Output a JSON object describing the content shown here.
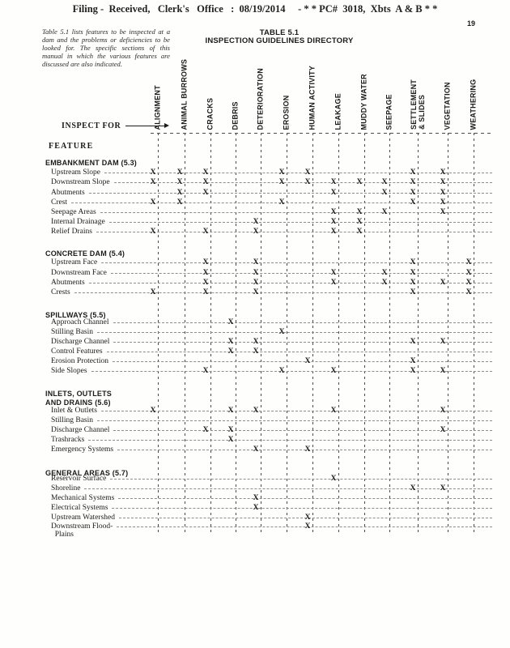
{
  "filing_header": {
    "text": "Filing -  Received,   Clerk's   Office   :  08/19/2014     - * * PC#  3018,  Xbts  A & B * *"
  },
  "page_number": "19",
  "intro_note": "Table 5.1 lists features to be inspected at a dam and the problems or deficiencies to be looked for. The specific sections of this manual in which the various features are discussed are also indicated.",
  "title": {
    "line1": "TABLE 5.1",
    "line2": "INSPECTION GUIDELINES DIRECTORY"
  },
  "labels": {
    "inspect_for": "INSPECT FOR",
    "feature": "FEATURE",
    "mark": "X"
  },
  "table": {
    "columns": [
      "ALIGNMENT",
      "ANIMAL BURROWS",
      "CRACKS",
      "DEBRIS",
      "DETERIORATION",
      "EROSION",
      "HUMAN ACTIVITY",
      "LEAKAGE",
      "MUDDY WATER",
      "SEEPAGE",
      "SETTLEMENT\n& SLIDES",
      "VEGETATION",
      "WEATHERING"
    ],
    "sections": [
      {
        "title": "EMBANKMENT DAM (5.3)",
        "rows": [
          {
            "label": "Upstream Slope",
            "marks": [
              0,
              1,
              2,
              5,
              6,
              10,
              11
            ]
          },
          {
            "label": "Downstream Slope",
            "marks": [
              0,
              1,
              2,
              5,
              6,
              7,
              8,
              9,
              10,
              11
            ]
          },
          {
            "label": "Abutments",
            "marks": [
              1,
              2,
              7,
              9,
              10,
              11
            ]
          },
          {
            "label": "Crest",
            "marks": [
              0,
              1,
              5,
              10,
              11
            ]
          },
          {
            "label": "Seepage Areas",
            "marks": [
              7,
              8,
              9,
              11
            ]
          },
          {
            "label": "Internal Drainage",
            "marks": [
              4,
              7,
              8
            ]
          },
          {
            "label": "Relief Drains",
            "marks": [
              0,
              2,
              4,
              7,
              8
            ]
          }
        ]
      },
      {
        "title": "CONCRETE DAM (5.4)",
        "rows": [
          {
            "label": "Upstream Face",
            "marks": [
              2,
              4,
              10,
              12
            ]
          },
          {
            "label": "Downstream Face",
            "marks": [
              2,
              4,
              7,
              9,
              10,
              12
            ]
          },
          {
            "label": "Abutments",
            "marks": [
              2,
              4,
              7,
              9,
              10,
              11,
              12
            ]
          },
          {
            "label": "Crests",
            "marks": [
              0,
              2,
              4,
              10,
              12
            ]
          }
        ]
      },
      {
        "title": "SPILLWAYS (5.5)",
        "rows": [
          {
            "label": "Approach Channel",
            "marks": [
              3
            ]
          },
          {
            "label": "Stilling Basin",
            "marks": [
              5
            ]
          },
          {
            "label": "Discharge Channel",
            "marks": [
              3,
              4,
              10,
              11
            ]
          },
          {
            "label": "Control Features",
            "marks": [
              3,
              4
            ]
          },
          {
            "label": "Erosion Protection",
            "marks": [
              6,
              10
            ]
          },
          {
            "label": "Side Slopes",
            "marks": [
              2,
              5,
              7,
              10,
              11
            ]
          }
        ]
      },
      {
        "title": "INLETS, OUTLETS\nAND DRAINS (5.6)",
        "rows": [
          {
            "label": "Inlet & Outlets",
            "marks": [
              0,
              3,
              4,
              7,
              11
            ]
          },
          {
            "label": "Stilling Basin",
            "marks": []
          },
          {
            "label": "Discharge Channel",
            "marks": [
              2,
              3,
              11
            ]
          },
          {
            "label": "Trashracks",
            "marks": [
              3
            ]
          },
          {
            "label": "Emergency Systems",
            "marks": [
              4,
              6
            ]
          }
        ]
      },
      {
        "title": "GENERAL AREAS (5.7)",
        "rows": [
          {
            "label": "Reservoir Surface",
            "marks": [
              7
            ]
          },
          {
            "label": "Shoreline",
            "marks": [
              10,
              11
            ]
          },
          {
            "label": "Mechanical Systems",
            "marks": [
              4
            ]
          },
          {
            "label": "Electrical Systems",
            "marks": [
              4
            ]
          },
          {
            "label": "Upstream Watershed",
            "marks": [
              6
            ]
          },
          {
            "label": "Downstream Flood-\n  Plains",
            "marks": [
              6
            ]
          }
        ]
      }
    ]
  }
}
